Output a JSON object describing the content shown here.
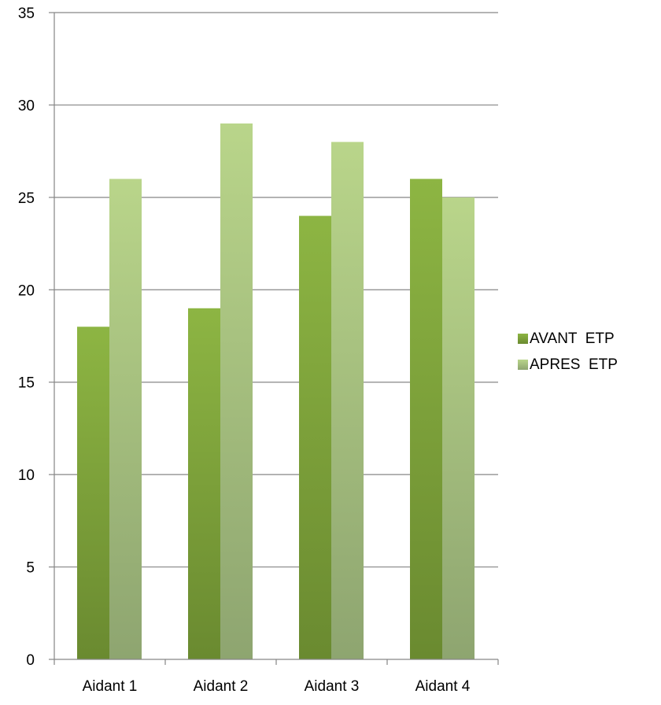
{
  "chart_data": {
    "type": "bar",
    "title": "",
    "xlabel": "",
    "ylabel": "",
    "categories": [
      "Aidant 1",
      "Aidant 2",
      "Aidant 3",
      "Aidant 4"
    ],
    "series": [
      {
        "name": "AVANT  ETP",
        "values": [
          18,
          19,
          24,
          26
        ],
        "color_top": "#8db543",
        "color_bottom": "#6a8a30"
      },
      {
        "name": "APRES  ETP",
        "values": [
          26,
          29,
          28,
          25
        ],
        "color_top": "#b9d58a",
        "color_bottom": "#8ea570"
      }
    ],
    "ylim": [
      0,
      35
    ],
    "yticks": [
      "0",
      "5",
      "10",
      "15",
      "20",
      "25",
      "30",
      "35"
    ],
    "grid": true,
    "gridline_color": "#868686",
    "legend_position": "right"
  }
}
